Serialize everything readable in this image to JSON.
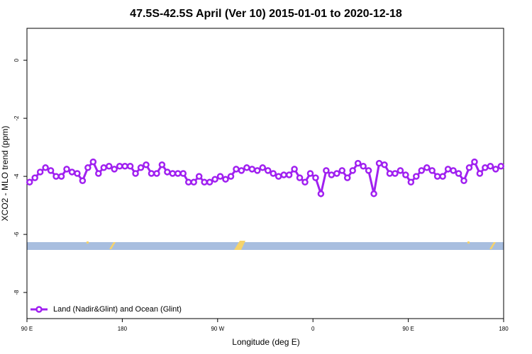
{
  "chart_data": {
    "type": "line",
    "title": "47.5S-42.5S April (Ver 10)   2015-01-01 to 2020-12-18",
    "x_label": "Longitude (deg E)",
    "y_label": "XCO2 - MLO trend (ppm)",
    "xlim": [
      90,
      540
    ],
    "ylim": [
      -8.9,
      1.1
    ],
    "xticks": [
      {
        "value": 90,
        "label": "90 E"
      },
      {
        "value": 180,
        "label": "180"
      },
      {
        "value": 270,
        "label": "90 W"
      },
      {
        "value": 360,
        "label": "0"
      },
      {
        "value": 450,
        "label": "90 E"
      },
      {
        "value": 540,
        "label": "180"
      }
    ],
    "yticks": [
      0,
      -2,
      -4,
      -6,
      -8
    ],
    "legend": "bottom-left",
    "x": [
      92.5,
      97.5,
      102.5,
      107.5,
      112.5,
      117.5,
      122.5,
      127.5,
      132.5,
      137.5,
      142.5,
      147.5,
      152.5,
      157.5,
      162.5,
      167.5,
      172.5,
      177.5,
      182.5,
      187.5,
      192.5,
      197.5,
      202.5,
      207.5,
      212.5,
      217.5,
      222.5,
      227.5,
      232.5,
      237.5,
      242.5,
      247.5,
      252.5,
      257.5,
      262.5,
      267.5,
      272.5,
      277.5,
      282.5,
      287.5,
      292.5,
      297.5,
      302.5,
      307.5,
      312.5,
      317.5,
      322.5,
      327.5,
      332.5,
      337.5,
      342.5,
      347.5,
      352.5,
      357.5,
      362.5,
      367.5,
      372.5,
      377.5,
      382.5,
      387.5,
      392.5,
      397.5,
      402.5,
      407.5,
      412.5,
      417.5,
      422.5,
      427.5,
      432.5,
      437.5,
      442.5,
      447.5,
      452.5,
      457.5,
      462.5,
      467.5,
      472.5,
      477.5,
      482.5,
      487.5,
      492.5,
      497.5,
      502.5,
      507.5,
      512.5,
      517.5,
      522.5,
      527.5,
      532.5,
      537.5
    ],
    "series": [
      {
        "name": "Land (Nadir&Glint) and Ocean (Glint)",
        "color": "#a020f0",
        "values": [
          -4.2,
          -4.05,
          -3.85,
          -3.7,
          -3.8,
          -4.0,
          -4.0,
          -3.75,
          -3.85,
          -3.9,
          -4.15,
          -3.7,
          -3.5,
          -3.9,
          -3.7,
          -3.65,
          -3.75,
          -3.65,
          -3.65,
          -3.65,
          -3.9,
          -3.7,
          -3.6,
          -3.9,
          -3.9,
          -3.6,
          -3.85,
          -3.9,
          -3.9,
          -3.9,
          -4.2,
          -4.2,
          -4.0,
          -4.2,
          -4.2,
          -4.1,
          -4.0,
          -4.1,
          -4.0,
          -3.75,
          -3.8,
          -3.7,
          -3.75,
          -3.8,
          -3.7,
          -3.8,
          -3.9,
          -4.0,
          -3.95,
          -3.95,
          -3.75,
          -4.05,
          -4.2,
          -3.9,
          -4.05,
          -4.6,
          -3.8,
          -3.95,
          -3.9,
          -3.8,
          -4.05,
          -3.8,
          -3.55,
          -3.65,
          -3.8,
          -4.6,
          -3.55,
          -3.6,
          -3.9,
          -3.9,
          -3.8,
          -3.95,
          -4.2,
          -4.0,
          -3.8,
          -3.7,
          -3.8,
          -4.0,
          -4.0,
          -3.75,
          -3.8,
          -3.9,
          -4.15,
          -3.7,
          -3.5,
          -3.9,
          -3.7,
          -3.65,
          -3.75,
          -3.65
        ]
      }
    ]
  }
}
